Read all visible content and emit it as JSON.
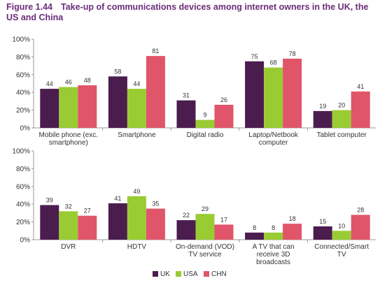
{
  "figure": {
    "number": "Figure 1.44",
    "title": "Take-up of communications devices among internet owners in the UK, the US and China"
  },
  "legend": [
    {
      "name": "UK",
      "color": "#4b1d4f"
    },
    {
      "name": "USA",
      "color": "#99cc33"
    },
    {
      "name": "CHN",
      "color": "#e0556a"
    }
  ],
  "chart_data": [
    {
      "type": "bar",
      "ylim": [
        0,
        100
      ],
      "yticks": [
        "0%",
        "20%",
        "40%",
        "60%",
        "80%",
        "100%"
      ],
      "grid": false,
      "categories": [
        [
          "Mobile phone (exc.",
          "smartphone)"
        ],
        [
          "Smartphone"
        ],
        [
          "Digital radio"
        ],
        [
          "Laptop/Netbook",
          "computer"
        ],
        [
          "Tablet computer"
        ]
      ],
      "series": [
        {
          "name": "UK",
          "values": [
            44,
            58,
            31,
            75,
            19
          ]
        },
        {
          "name": "USA",
          "values": [
            46,
            44,
            9,
            68,
            20
          ]
        },
        {
          "name": "CHN",
          "values": [
            48,
            81,
            26,
            78,
            41
          ]
        }
      ]
    },
    {
      "type": "bar",
      "ylim": [
        0,
        100
      ],
      "yticks": [
        "0%",
        "20%",
        "40%",
        "60%",
        "80%",
        "100%"
      ],
      "grid": false,
      "categories": [
        [
          "DVR"
        ],
        [
          "HDTV"
        ],
        [
          "On-demand (VOD)",
          "TV service"
        ],
        [
          "A TV that can",
          "receive 3D",
          "broadcasts"
        ],
        [
          "Connected/Smart",
          "TV"
        ]
      ],
      "series": [
        {
          "name": "UK",
          "values": [
            39,
            41,
            22,
            8,
            15
          ]
        },
        {
          "name": "USA",
          "values": [
            32,
            49,
            29,
            8,
            10
          ]
        },
        {
          "name": "CHN",
          "values": [
            27,
            35,
            17,
            18,
            28
          ]
        }
      ]
    }
  ]
}
